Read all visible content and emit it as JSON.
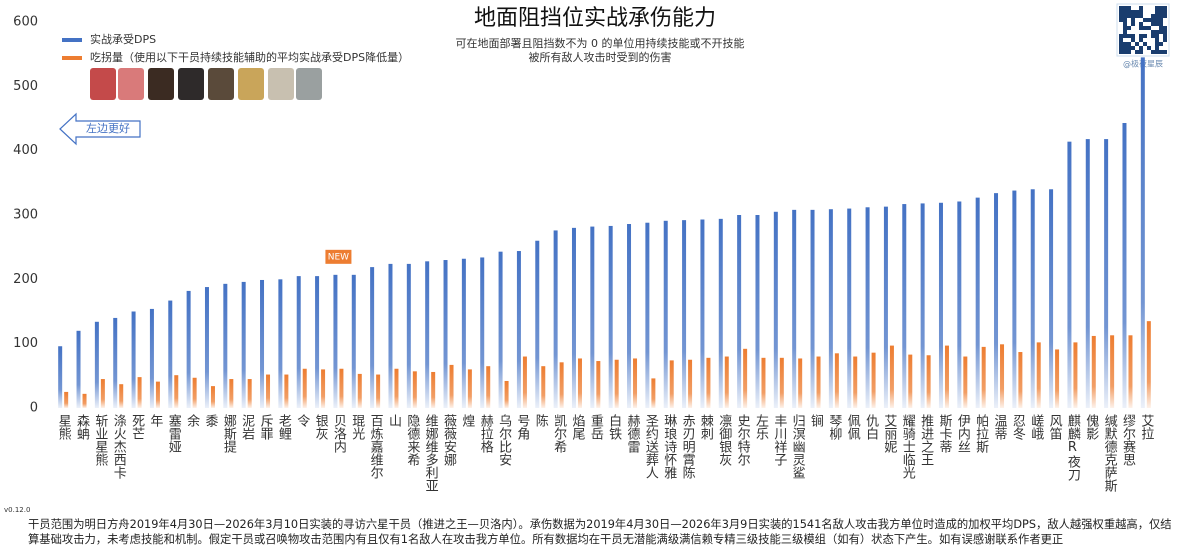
{
  "chart_data": {
    "type": "bar",
    "title": "地面阻挡位实战承伤能力",
    "subtitle": [
      "可在地面部署且阻挡数不为 0 的单位用持续技能或不开技能",
      "被所有敌人攻击时受到的伤害"
    ],
    "annotations": {
      "better": "左边更好",
      "new": "NEW",
      "version": "v0.12.0",
      "credit": "@极夜星辰"
    },
    "footnote": "干员范围为明日方舟2019年4月30日—2026年3月10日实装的寻访六星干员（推进之王—贝洛内）。承伤数据为2019年4月30日—2026年3月9日实装的1541名敌人攻击我方单位时造成的加权平均DPS，敌人越强权重越高，仅结算基础攻击力，未考虑技能和机制。假定干员或召唤物攻击范围内有且仅有1名敌人在攻击我方单位。所有数据均在干员无潜能满级满信赖专精三级技能三级模组（如有）状态下产生。如有误感谢联系作者更正",
    "categories": [
      "星熊",
      "森蚺",
      "斩业星熊",
      "涤火杰西卡",
      "死芒",
      "年",
      "塞雷娅",
      "余",
      "黍",
      "娜斯提",
      "泥岩",
      "斥罪",
      "老鲤",
      "令",
      "银灰",
      "贝洛内",
      "琨光",
      "百炼嘉维尔",
      "山",
      "隐德来希",
      "维娜维多利亚",
      "薇薇安娜",
      "煌",
      "赫拉格",
      "乌尔比安",
      "号角",
      "陈",
      "凯尔希",
      "焰尾",
      "重岳",
      "白铁",
      "赫德雷",
      "圣约送葬人",
      "琳琅诗怀雅",
      "赤刃明霄陈",
      "棘刺",
      "凛御银灰",
      "史尔特尔",
      "左乐",
      "丰川祥子",
      "归溟幽灵鲨",
      "锏",
      "琴柳",
      "佩佩",
      "仇白",
      "艾丽妮",
      "耀骑士临光",
      "推进之王",
      "斯卡蒂",
      "伊内丝",
      "帕拉斯",
      "温蒂",
      "忍冬",
      "嵯峨",
      "风笛",
      "麒麟R夜刀",
      "傀影",
      "缄默德克萨斯",
      "缪尔赛思",
      "艾拉"
    ],
    "series": [
      {
        "name": "实战承受DPS",
        "color": "#4472c4",
        "values": [
          96,
          120,
          134,
          140,
          150,
          154,
          167,
          182,
          188,
          193,
          196,
          199,
          200,
          205,
          205,
          207,
          207,
          219,
          224,
          224,
          228,
          230,
          232,
          234,
          243,
          244,
          260,
          276,
          280,
          282,
          283,
          286,
          288,
          291,
          292,
          293,
          294,
          300,
          300,
          305,
          308,
          308,
          309,
          310,
          312,
          313,
          317,
          318,
          319,
          321,
          327,
          334,
          338,
          340,
          340,
          414,
          418,
          418,
          443,
          545
        ]
      },
      {
        "name": "吃拐量（使用以下干员持续技能辅助的平均实战承受DPS降低量）",
        "color": "#ed7d31",
        "values": [
          25,
          22,
          45,
          37,
          48,
          41,
          51,
          47,
          34,
          45,
          45,
          52,
          52,
          61,
          60,
          61,
          53,
          52,
          61,
          57,
          56,
          67,
          60,
          65,
          42,
          80,
          65,
          71,
          77,
          73,
          75,
          77,
          46,
          74,
          75,
          78,
          80,
          92,
          78,
          78,
          77,
          80,
          85,
          80,
          86,
          97,
          83,
          82,
          97,
          80,
          95,
          99,
          87,
          102,
          91,
          102,
          112,
          113,
          113,
          135
        ]
      }
    ],
    "ylim": [
      0,
      600
    ],
    "yticks": [
      0,
      100,
      200,
      300,
      400,
      500,
      600
    ],
    "grid": false,
    "legend": "top-left"
  }
}
